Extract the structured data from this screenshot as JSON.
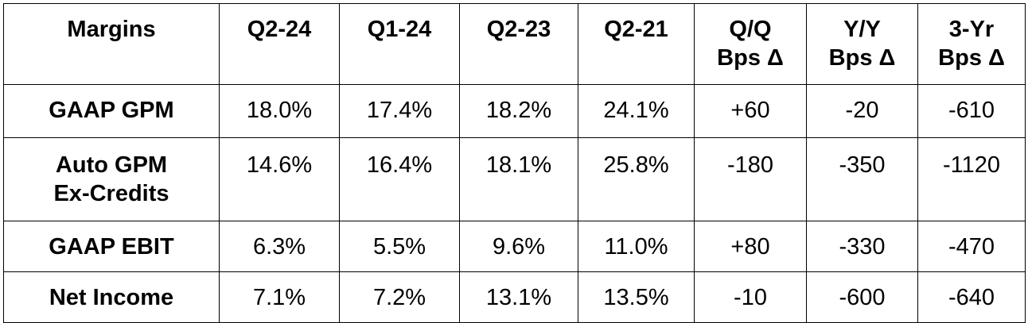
{
  "table": {
    "header": {
      "label": "Margins",
      "q2_24": "Q2-24",
      "q1_24": "Q1-24",
      "q2_23": "Q2-23",
      "q2_21": "Q2-21",
      "qq_line1": "Q/Q",
      "qq_line2": "Bps Δ",
      "yy_line1": "Y/Y",
      "yy_line2": "Bps Δ",
      "yr3_line1": "3-Yr",
      "yr3_line2": "Bps Δ"
    },
    "rows": [
      {
        "label_line1": "GAAP GPM",
        "label_line2": "",
        "q2_24": "18.0%",
        "q1_24": "17.4%",
        "q2_23": "18.2%",
        "q2_21": "24.1%",
        "qq": "+60",
        "yy": "-20",
        "yr3": "-610"
      },
      {
        "label_line1": "Auto GPM",
        "label_line2": "Ex-Credits",
        "q2_24": "14.6%",
        "q1_24": "16.4%",
        "q2_23": "18.1%",
        "q2_21": "25.8%",
        "qq": "-180",
        "yy": "-350",
        "yr3": "-1120"
      },
      {
        "label_line1": "GAAP EBIT",
        "label_line2": "",
        "q2_24": "6.3%",
        "q1_24": "5.5%",
        "q2_23": "9.6%",
        "q2_21": "11.0%",
        "qq": "+80",
        "yy": "-330",
        "yr3": "-470"
      },
      {
        "label_line1": "Net Income",
        "label_line2": "",
        "q2_24": "7.1%",
        "q1_24": "7.2%",
        "q2_23": "13.1%",
        "q2_21": "13.5%",
        "qq": "-10",
        "yy": "-600",
        "yr3": "-640"
      }
    ]
  }
}
